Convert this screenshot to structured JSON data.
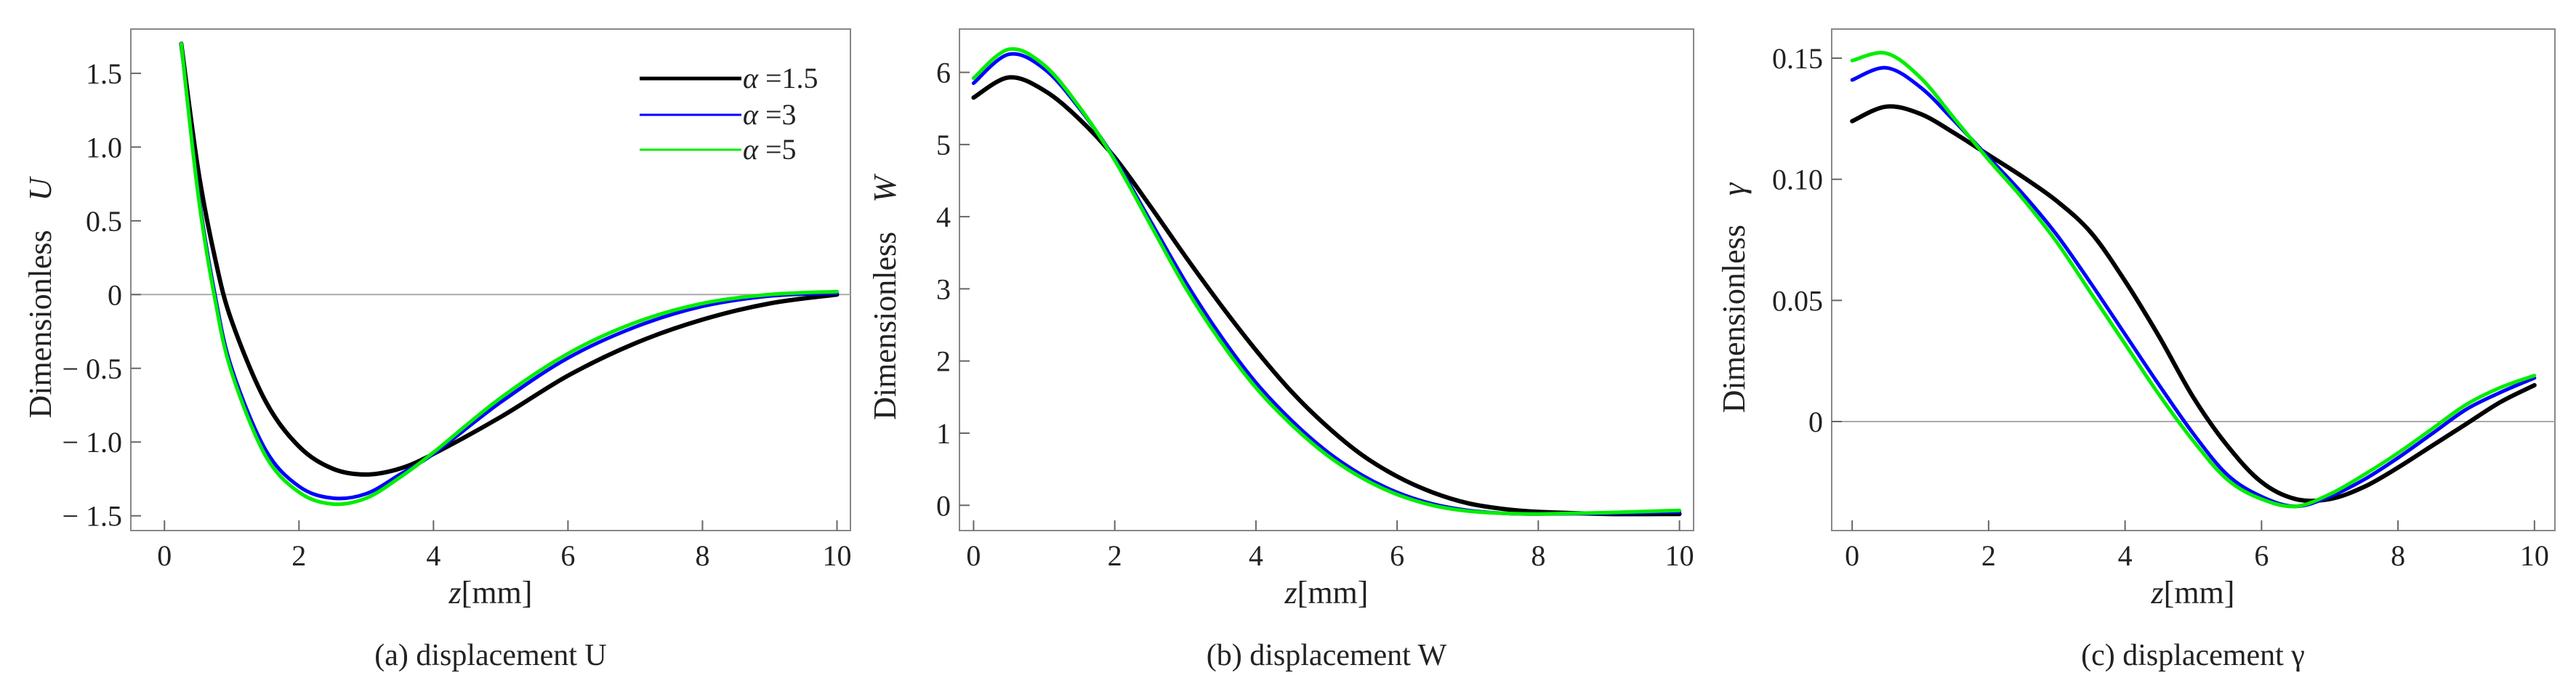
{
  "chart_data": [
    {
      "type": "line",
      "id": "a",
      "caption": "(a) displacement U",
      "ylabel_prefix": "Dimensionless",
      "ylabel_symbol": "U",
      "xlabel_var": "z",
      "xlabel_unit": "[mm]",
      "xlim": [
        -0.5,
        10.2
      ],
      "ylim": [
        -1.6,
        1.8
      ],
      "xticks": [
        0,
        2,
        4,
        6,
        8,
        10
      ],
      "xtick_labels": [
        "0",
        "2",
        "4",
        "6",
        "8",
        "10"
      ],
      "yticks": [
        -1.5,
        -1.0,
        -0.5,
        0,
        0.5,
        1.0,
        1.5
      ],
      "ytick_labels": [
        "− 1.5",
        "− 1.0",
        "− 0.5",
        "0",
        "0.5",
        "1.0",
        "1.5"
      ],
      "zero_line": true,
      "legend": {
        "location": "top-right",
        "entries": [
          {
            "symbol": "α",
            "text": " =1.5"
          },
          {
            "symbol": "α",
            "text": " =3"
          },
          {
            "symbol": "α",
            "text": " =5"
          }
        ]
      },
      "series": [
        {
          "name": "α=1.5",
          "color": "#000000",
          "x": [
            0.25,
            0.5,
            0.75,
            1.0,
            1.5,
            2.0,
            2.5,
            3.0,
            3.5,
            4.0,
            5.0,
            6.0,
            7.0,
            8.0,
            9.0,
            10.0
          ],
          "y": [
            1.7,
            0.85,
            0.25,
            -0.18,
            -0.72,
            -1.03,
            -1.18,
            -1.22,
            -1.18,
            -1.08,
            -0.83,
            -0.55,
            -0.33,
            -0.17,
            -0.06,
            0.0
          ]
        },
        {
          "name": "α=3",
          "color": "#0000ff",
          "x": [
            0.25,
            0.5,
            0.75,
            1.0,
            1.5,
            2.0,
            2.5,
            3.0,
            3.5,
            4.0,
            5.0,
            6.0,
            7.0,
            8.0,
            9.0,
            10.0
          ],
          "y": [
            1.7,
            0.7,
            0.0,
            -0.5,
            -1.05,
            -1.3,
            -1.38,
            -1.35,
            -1.22,
            -1.08,
            -0.73,
            -0.43,
            -0.22,
            -0.08,
            -0.01,
            0.01
          ]
        },
        {
          "name": "α=5",
          "color": "#00ee00",
          "x": [
            0.25,
            0.5,
            0.75,
            1.0,
            1.5,
            2.0,
            2.5,
            3.0,
            3.5,
            4.0,
            5.0,
            6.0,
            7.0,
            8.0,
            9.0,
            10.0
          ],
          "y": [
            1.7,
            0.68,
            -0.03,
            -0.53,
            -1.09,
            -1.34,
            -1.42,
            -1.38,
            -1.24,
            -1.07,
            -0.7,
            -0.4,
            -0.19,
            -0.06,
            0.0,
            0.02
          ]
        }
      ]
    },
    {
      "type": "line",
      "id": "b",
      "caption": "(b) displacement W",
      "ylabel_prefix": "Dimensionless",
      "ylabel_symbol": "W",
      "xlabel_var": "z",
      "xlabel_unit": "[mm]",
      "xlim": [
        -0.2,
        10.2
      ],
      "ylim": [
        -0.35,
        6.6
      ],
      "xticks": [
        0,
        2,
        4,
        6,
        8,
        10
      ],
      "xtick_labels": [
        "0",
        "2",
        "4",
        "6",
        "8",
        "10"
      ],
      "yticks": [
        0,
        1,
        2,
        3,
        4,
        5,
        6
      ],
      "ytick_labels": [
        "0",
        "1",
        "2",
        "3",
        "4",
        "5",
        "6"
      ],
      "zero_line": false,
      "series": [
        {
          "name": "α=1.5",
          "color": "#000000",
          "x": [
            0,
            0.5,
            1.0,
            1.5,
            2.0,
            2.5,
            3.0,
            3.5,
            4.0,
            4.5,
            5.0,
            5.5,
            6.0,
            6.5,
            7.0,
            7.5,
            8.0,
            9.0,
            10.0
          ],
          "y": [
            5.65,
            5.93,
            5.75,
            5.35,
            4.82,
            4.15,
            3.45,
            2.78,
            2.15,
            1.58,
            1.1,
            0.7,
            0.4,
            0.18,
            0.03,
            -0.05,
            -0.09,
            -0.12,
            -0.12
          ]
        },
        {
          "name": "α=3",
          "color": "#0000ff",
          "x": [
            0,
            0.5,
            1.0,
            1.5,
            2.0,
            2.5,
            3.0,
            3.5,
            4.0,
            4.5,
            5.0,
            5.5,
            6.0,
            6.5,
            7.0,
            7.5,
            8.0,
            9.0,
            10.0
          ],
          "y": [
            5.85,
            6.25,
            6.05,
            5.5,
            4.8,
            3.95,
            3.1,
            2.35,
            1.7,
            1.18,
            0.75,
            0.42,
            0.18,
            0.02,
            -0.07,
            -0.11,
            -0.12,
            -0.11,
            -0.09
          ]
        },
        {
          "name": "α=5",
          "color": "#00ee00",
          "x": [
            0,
            0.5,
            1.0,
            1.5,
            2.0,
            2.5,
            3.0,
            3.5,
            4.0,
            4.5,
            5.0,
            5.5,
            6.0,
            6.5,
            7.0,
            7.5,
            8.0,
            9.0,
            10.0
          ],
          "y": [
            5.92,
            6.32,
            6.1,
            5.52,
            4.78,
            3.9,
            3.02,
            2.27,
            1.63,
            1.12,
            0.7,
            0.38,
            0.15,
            0.0,
            -0.08,
            -0.11,
            -0.12,
            -0.1,
            -0.07
          ]
        }
      ]
    },
    {
      "type": "line",
      "id": "c",
      "caption": "(c) displacement γ",
      "ylabel_prefix": "Dimensionless",
      "ylabel_symbol": "γ",
      "xlabel_var": "z",
      "xlabel_unit": "[mm]",
      "xlim": [
        -0.3,
        10.3
      ],
      "ylim": [
        -0.045,
        0.162
      ],
      "xticks": [
        0,
        2,
        4,
        6,
        8,
        10
      ],
      "xtick_labels": [
        "0",
        "2",
        "4",
        "6",
        "8",
        "10"
      ],
      "yticks": [
        0,
        0.05,
        0.1,
        0.15
      ],
      "ytick_labels": [
        "0",
        "0.05",
        "0.10",
        "0.15"
      ],
      "zero_line": true,
      "series": [
        {
          "name": "α=1.5",
          "color": "#000000",
          "x": [
            0,
            0.5,
            1.0,
            1.5,
            2.0,
            2.5,
            3.0,
            3.5,
            4.0,
            4.5,
            5.0,
            5.5,
            6.0,
            6.5,
            7.0,
            7.5,
            8.0,
            8.5,
            9.0,
            9.5,
            10.0
          ],
          "y": [
            0.124,
            0.13,
            0.127,
            0.119,
            0.11,
            0.101,
            0.091,
            0.078,
            0.058,
            0.035,
            0.01,
            -0.01,
            -0.025,
            -0.032,
            -0.032,
            -0.027,
            -0.019,
            -0.01,
            -0.001,
            0.008,
            0.015
          ]
        },
        {
          "name": "α=3",
          "color": "#0000ff",
          "x": [
            0,
            0.5,
            1.0,
            1.5,
            2.0,
            2.5,
            3.0,
            3.5,
            4.0,
            4.5,
            5.0,
            5.5,
            6.0,
            6.5,
            7.0,
            7.5,
            8.0,
            8.5,
            9.0,
            9.5,
            10.0
          ],
          "y": [
            0.141,
            0.146,
            0.138,
            0.124,
            0.109,
            0.094,
            0.077,
            0.057,
            0.036,
            0.015,
            -0.005,
            -0.022,
            -0.031,
            -0.035,
            -0.031,
            -0.024,
            -0.015,
            -0.005,
            0.005,
            0.012,
            0.018
          ]
        },
        {
          "name": "α=5",
          "color": "#00ee00",
          "x": [
            0,
            0.5,
            1.0,
            1.5,
            2.0,
            2.5,
            3.0,
            3.5,
            4.0,
            4.5,
            5.0,
            5.5,
            6.0,
            6.5,
            7.0,
            7.5,
            8.0,
            8.5,
            9.0,
            9.5,
            10.0
          ],
          "y": [
            0.149,
            0.152,
            0.142,
            0.125,
            0.108,
            0.092,
            0.074,
            0.053,
            0.032,
            0.011,
            -0.008,
            -0.024,
            -0.032,
            -0.035,
            -0.03,
            -0.022,
            -0.013,
            -0.003,
            0.007,
            0.014,
            0.019
          ]
        }
      ]
    }
  ]
}
